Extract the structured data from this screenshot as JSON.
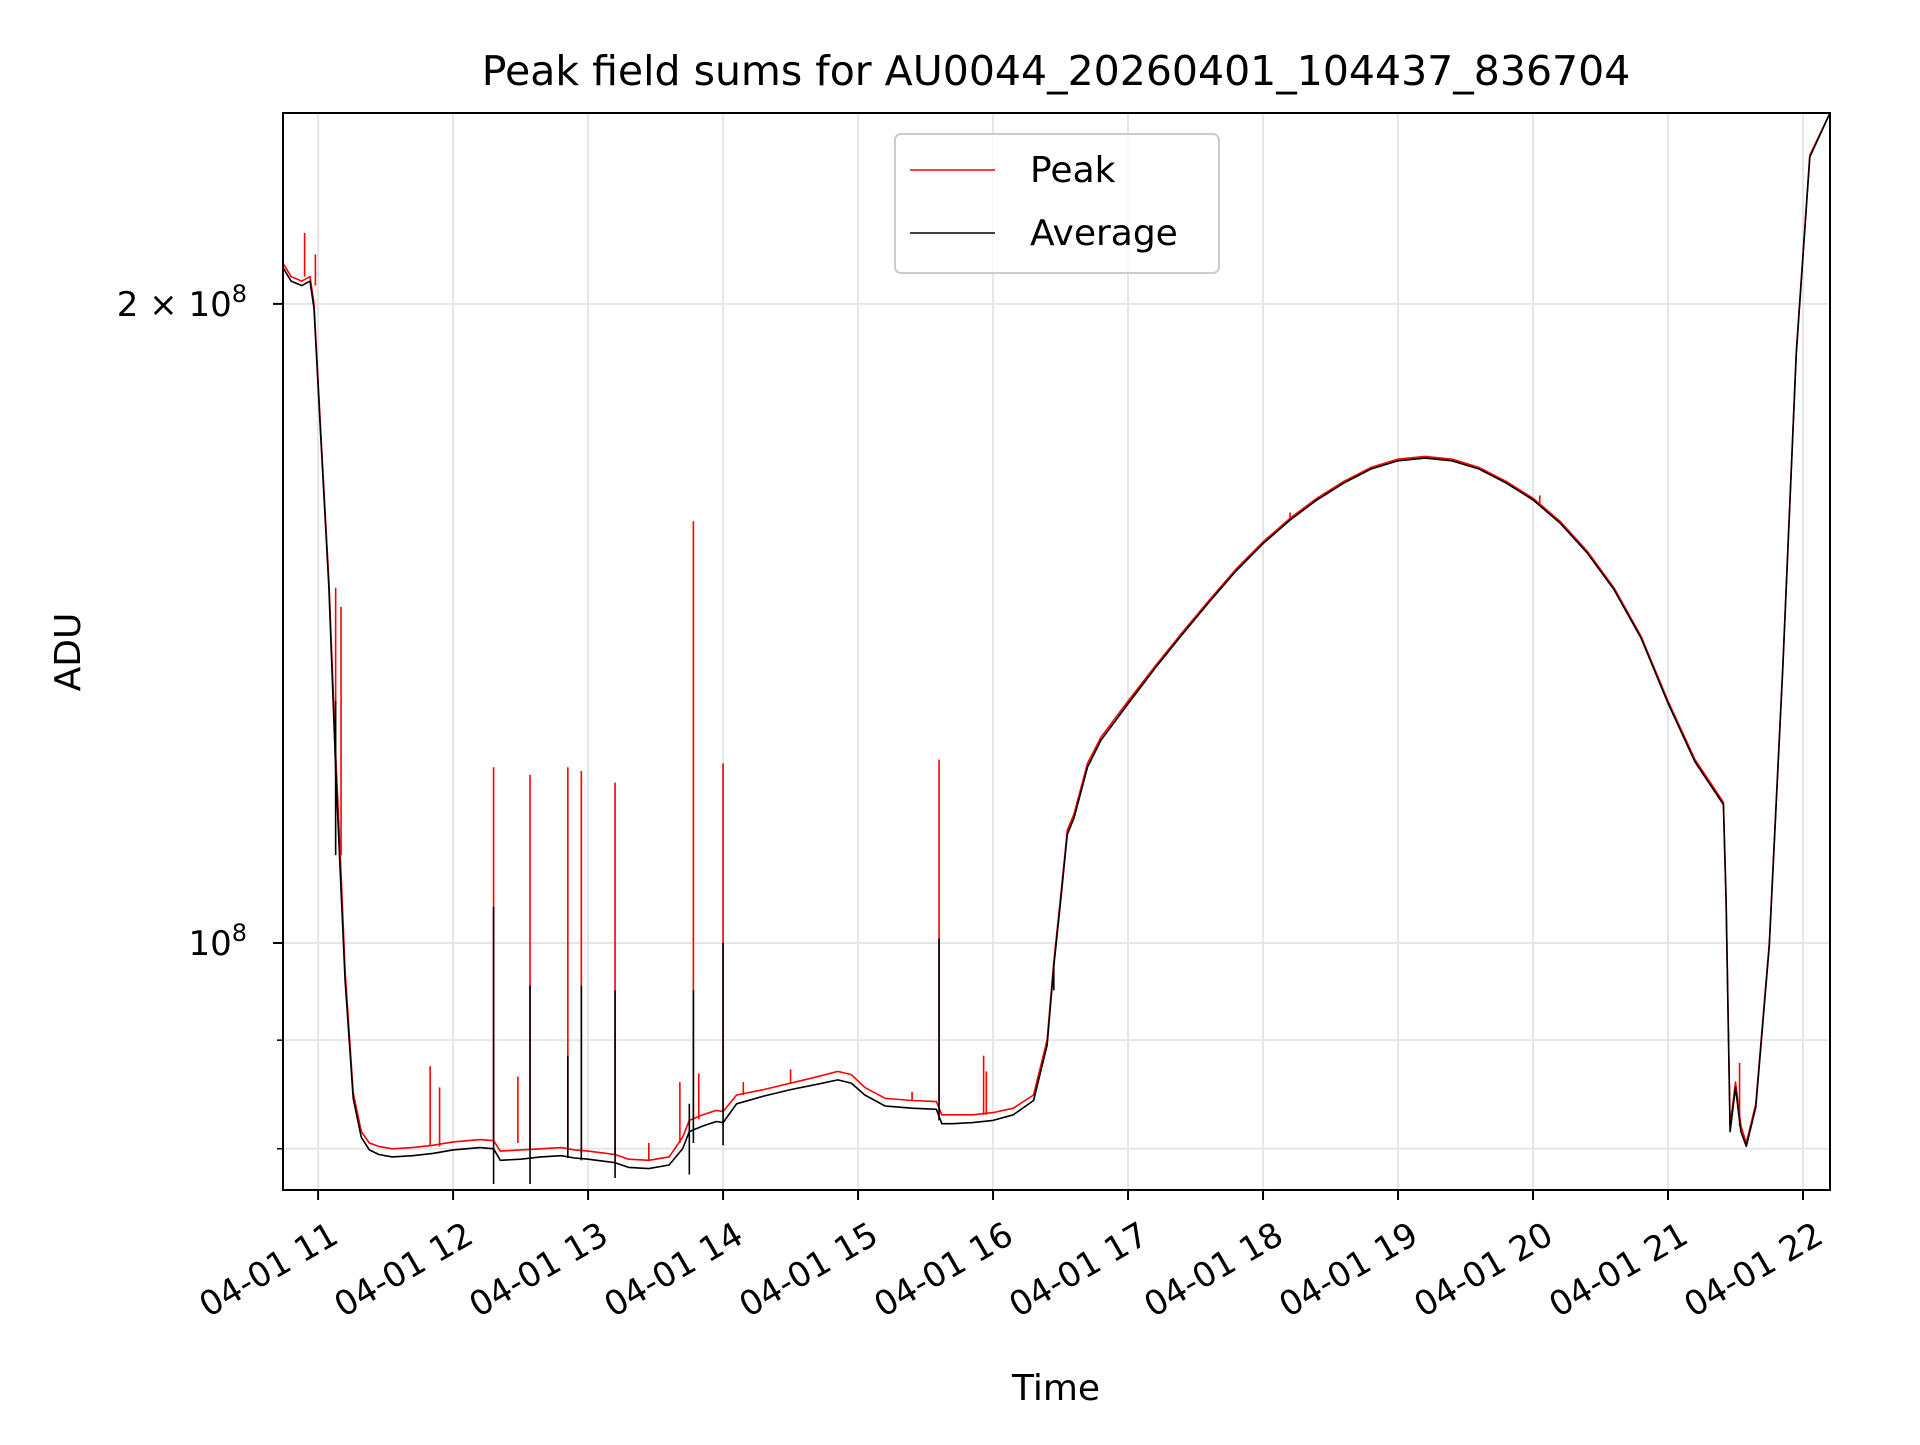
{
  "chart_data": {
    "type": "line",
    "title": "Peak field sums for AU0044_20260401_104437_836704",
    "xlabel": "Time",
    "ylabel": "ADU",
    "yscale": "log",
    "xlim": [
      10.74,
      22.2
    ],
    "ylim": [
      76500000,
      246000000
    ],
    "grid": true,
    "legend_location": "upper center",
    "x_ticks": [
      {
        "value": 11,
        "label": "04-01 11"
      },
      {
        "value": 12,
        "label": "04-01 12"
      },
      {
        "value": 13,
        "label": "04-01 13"
      },
      {
        "value": 14,
        "label": "04-01 14"
      },
      {
        "value": 15,
        "label": "04-01 15"
      },
      {
        "value": 16,
        "label": "04-01 16"
      },
      {
        "value": 17,
        "label": "04-01 17"
      },
      {
        "value": 18,
        "label": "04-01 18"
      },
      {
        "value": 19,
        "label": "04-01 19"
      },
      {
        "value": 20,
        "label": "04-01 20"
      },
      {
        "value": 21,
        "label": "04-01 21"
      },
      {
        "value": 22,
        "label": "04-01 22"
      }
    ],
    "y_major_ticks": [
      {
        "value": 100000000,
        "label": "10",
        "sup": "8"
      },
      {
        "value": 200000000,
        "label": "2 × 10",
        "sup": "8"
      }
    ],
    "y_minor_ticks": [
      80000000,
      90000000
    ],
    "series": [
      {
        "name": "Peak",
        "color": "#ff0000",
        "points": [
          [
            10.74,
            209000000
          ],
          [
            10.8,
            206000000
          ],
          [
            10.88,
            205000000
          ],
          [
            10.94,
            206000000
          ],
          [
            10.97,
            200000000
          ],
          [
            11.02,
            174000000
          ],
          [
            11.08,
            148000000
          ],
          [
            11.13,
            123000000
          ],
          [
            11.17,
            108000000
          ],
          [
            11.2,
            97000000
          ],
          [
            11.26,
            85000000
          ],
          [
            11.32,
            81500000
          ],
          [
            11.38,
            80500000
          ],
          [
            11.45,
            80200000
          ],
          [
            11.55,
            80000000
          ],
          [
            11.7,
            80100000
          ],
          [
            11.85,
            80300000
          ],
          [
            12.0,
            80600000
          ],
          [
            12.2,
            80800000
          ],
          [
            12.3,
            80700000
          ],
          [
            12.35,
            79800000
          ],
          [
            12.5,
            79900000
          ],
          [
            12.65,
            80000000
          ],
          [
            12.8,
            80100000
          ],
          [
            12.9,
            79900000
          ],
          [
            13.0,
            79800000
          ],
          [
            13.2,
            79500000
          ],
          [
            13.3,
            79100000
          ],
          [
            13.45,
            79000000
          ],
          [
            13.6,
            79300000
          ],
          [
            13.7,
            81000000
          ],
          [
            13.75,
            82500000
          ],
          [
            13.85,
            83000000
          ],
          [
            13.95,
            83400000
          ],
          [
            14.0,
            83300000
          ],
          [
            14.1,
            84800000
          ],
          [
            14.3,
            85300000
          ],
          [
            14.5,
            85900000
          ],
          [
            14.7,
            86500000
          ],
          [
            14.85,
            87000000
          ],
          [
            14.95,
            86700000
          ],
          [
            15.05,
            85500000
          ],
          [
            15.2,
            84500000
          ],
          [
            15.4,
            84300000
          ],
          [
            15.58,
            84200000
          ],
          [
            15.62,
            83000000
          ],
          [
            15.7,
            83000000
          ],
          [
            15.85,
            83000000
          ],
          [
            16.0,
            83200000
          ],
          [
            16.15,
            83600000
          ],
          [
            16.3,
            84800000
          ],
          [
            16.4,
            90000000
          ],
          [
            16.45,
            98000000
          ],
          [
            16.5,
            105000000
          ],
          [
            16.55,
            113000000
          ],
          [
            16.6,
            115000000
          ],
          [
            16.7,
            121500000
          ],
          [
            16.8,
            125000000
          ],
          [
            17.0,
            130000000
          ],
          [
            17.2,
            135000000
          ],
          [
            17.4,
            140000000
          ],
          [
            17.6,
            145000000
          ],
          [
            17.8,
            150000000
          ],
          [
            18.0,
            154500000
          ],
          [
            18.2,
            158500000
          ],
          [
            18.4,
            162000000
          ],
          [
            18.6,
            165000000
          ],
          [
            18.8,
            167500000
          ],
          [
            19.0,
            169000000
          ],
          [
            19.2,
            169500000
          ],
          [
            19.4,
            169000000
          ],
          [
            19.6,
            167500000
          ],
          [
            19.8,
            165000000
          ],
          [
            20.0,
            162000000
          ],
          [
            20.2,
            158000000
          ],
          [
            20.4,
            153000000
          ],
          [
            20.6,
            147000000
          ],
          [
            20.8,
            139500000
          ],
          [
            21.0,
            130000000
          ],
          [
            21.2,
            122000000
          ],
          [
            21.41,
            116500000
          ],
          [
            21.43,
            105000000
          ],
          [
            21.46,
            82000000
          ],
          [
            21.5,
            86000000
          ],
          [
            21.54,
            82000000
          ],
          [
            21.58,
            80500000
          ],
          [
            21.65,
            84000000
          ],
          [
            21.75,
            100000000
          ],
          [
            21.85,
            135000000
          ],
          [
            21.95,
            190000000
          ],
          [
            22.05,
            235000000
          ],
          [
            22.2,
            246000000
          ]
        ],
        "spikes": [
          [
            10.9,
            206000000,
            216000000
          ],
          [
            10.98,
            204000000,
            211000000
          ],
          [
            11.13,
            120000000,
            147000000
          ],
          [
            11.17,
            110000000,
            144000000
          ],
          [
            11.83,
            80200000,
            87500000
          ],
          [
            11.9,
            80200000,
            85500000
          ],
          [
            12.3,
            80700000,
            121000000
          ],
          [
            12.48,
            80500000,
            86500000
          ],
          [
            12.57,
            79900000,
            120000000
          ],
          [
            12.85,
            80100000,
            121000000
          ],
          [
            12.95,
            79900000,
            120500000
          ],
          [
            13.2,
            79500000,
            119000000
          ],
          [
            13.45,
            79000000,
            80500000
          ],
          [
            13.68,
            80500000,
            86000000
          ],
          [
            13.78,
            82500000,
            158000000
          ],
          [
            13.82,
            82600000,
            86800000
          ],
          [
            14.0,
            83300000,
            121500000
          ],
          [
            14.15,
            84800000,
            86000000
          ],
          [
            14.5,
            85900000,
            87200000
          ],
          [
            15.4,
            84300000,
            85100000
          ],
          [
            15.6,
            84200000,
            122000000
          ],
          [
            15.93,
            83000000,
            88500000
          ],
          [
            15.95,
            83000000,
            87000000
          ],
          [
            18.2,
            158500000,
            159500000
          ],
          [
            20.05,
            161000000,
            162500000
          ],
          [
            21.53,
            82000000,
            87800000
          ]
        ]
      },
      {
        "name": "Average",
        "color": "#000000",
        "points": [
          [
            10.74,
            208000000
          ],
          [
            10.8,
            205000000
          ],
          [
            10.88,
            204000000
          ],
          [
            10.94,
            205000000
          ],
          [
            10.97,
            199000000
          ],
          [
            11.02,
            173000000
          ],
          [
            11.08,
            147000000
          ],
          [
            11.13,
            121000000
          ],
          [
            11.17,
            106000000
          ],
          [
            11.2,
            96000000
          ],
          [
            11.26,
            84500000
          ],
          [
            11.32,
            81000000
          ],
          [
            11.38,
            79900000
          ],
          [
            11.45,
            79500000
          ],
          [
            11.55,
            79300000
          ],
          [
            11.7,
            79400000
          ],
          [
            11.85,
            79600000
          ],
          [
            12.0,
            79900000
          ],
          [
            12.2,
            80100000
          ],
          [
            12.3,
            80000000
          ],
          [
            12.35,
            79000000
          ],
          [
            12.5,
            79100000
          ],
          [
            12.65,
            79300000
          ],
          [
            12.8,
            79400000
          ],
          [
            12.9,
            79200000
          ],
          [
            13.0,
            79100000
          ],
          [
            13.2,
            78800000
          ],
          [
            13.3,
            78400000
          ],
          [
            13.45,
            78300000
          ],
          [
            13.6,
            78600000
          ],
          [
            13.7,
            80000000
          ],
          [
            13.75,
            81500000
          ],
          [
            13.85,
            82000000
          ],
          [
            13.95,
            82400000
          ],
          [
            14.0,
            82300000
          ],
          [
            14.1,
            84000000
          ],
          [
            14.3,
            84700000
          ],
          [
            14.5,
            85300000
          ],
          [
            14.7,
            85800000
          ],
          [
            14.85,
            86200000
          ],
          [
            14.95,
            85900000
          ],
          [
            15.05,
            84800000
          ],
          [
            15.2,
            83800000
          ],
          [
            15.4,
            83600000
          ],
          [
            15.58,
            83500000
          ],
          [
            15.62,
            82200000
          ],
          [
            15.7,
            82200000
          ],
          [
            15.85,
            82300000
          ],
          [
            16.0,
            82500000
          ],
          [
            16.15,
            83000000
          ],
          [
            16.3,
            84300000
          ],
          [
            16.4,
            89500000
          ],
          [
            16.45,
            97500000
          ],
          [
            16.5,
            104500000
          ],
          [
            16.55,
            112500000
          ],
          [
            16.6,
            114500000
          ],
          [
            16.7,
            121000000
          ],
          [
            16.8,
            124600000
          ],
          [
            17.0,
            129600000
          ],
          [
            17.2,
            134700000
          ],
          [
            17.4,
            139700000
          ],
          [
            17.6,
            144700000
          ],
          [
            17.8,
            149700000
          ],
          [
            18.0,
            154200000
          ],
          [
            18.2,
            158200000
          ],
          [
            18.4,
            161700000
          ],
          [
            18.6,
            164700000
          ],
          [
            18.8,
            167200000
          ],
          [
            19.0,
            168700000
          ],
          [
            19.2,
            169200000
          ],
          [
            19.4,
            168700000
          ],
          [
            19.6,
            167200000
          ],
          [
            19.8,
            164700000
          ],
          [
            20.0,
            161700000
          ],
          [
            20.2,
            157700000
          ],
          [
            20.4,
            152700000
          ],
          [
            20.6,
            146700000
          ],
          [
            20.8,
            139200000
          ],
          [
            21.0,
            129700000
          ],
          [
            21.2,
            121700000
          ],
          [
            21.41,
            116200000
          ],
          [
            21.43,
            104500000
          ],
          [
            21.46,
            81500000
          ],
          [
            21.5,
            85500000
          ],
          [
            21.54,
            81500000
          ],
          [
            21.58,
            80200000
          ],
          [
            21.65,
            83700000
          ],
          [
            21.75,
            99700000
          ],
          [
            21.85,
            134700000
          ],
          [
            21.95,
            189500000
          ],
          [
            22.05,
            234500000
          ],
          [
            22.2,
            246000000
          ]
        ],
        "spikes": [
          [
            11.13,
            110000000,
            130000000
          ],
          [
            12.3,
            77000000,
            104000000
          ],
          [
            12.57,
            77000000,
            95500000
          ],
          [
            12.85,
            79200000,
            88500000
          ],
          [
            12.95,
            79000000,
            95500000
          ],
          [
            13.2,
            77500000,
            95000000
          ],
          [
            13.75,
            77800000,
            84000000
          ],
          [
            13.78,
            80500000,
            95000000
          ],
          [
            14.0,
            80300000,
            100000000
          ],
          [
            15.6,
            82500000,
            100500000
          ],
          [
            16.45,
            95000000,
            97500000
          ]
        ]
      }
    ]
  }
}
